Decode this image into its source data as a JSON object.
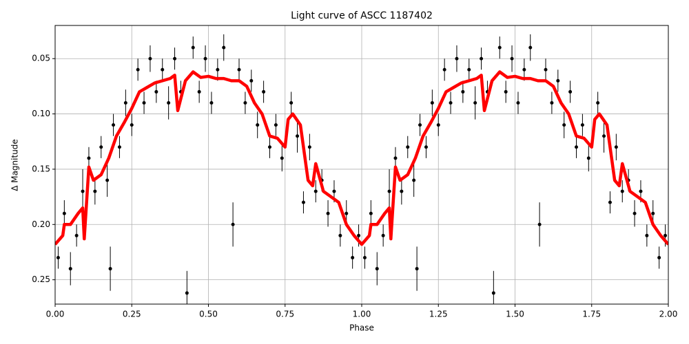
{
  "chart_data": {
    "type": "scatter",
    "title": "Light curve of ASCC 1187402",
    "x_label": "Phase",
    "y_label": "Δ Magnitude",
    "xlim": [
      0,
      2
    ],
    "ylim": [
      0.272,
      0.02
    ],
    "grid": true,
    "xticks": [
      {
        "value": 0,
        "label": "0.00"
      },
      {
        "value": 0.25,
        "label": "0.25"
      },
      {
        "value": 0.5,
        "label": "0.50"
      },
      {
        "value": 0.75,
        "label": "0.75"
      },
      {
        "value": 1,
        "label": "1.00"
      },
      {
        "value": 1.25,
        "label": "1.25"
      },
      {
        "value": 1.5,
        "label": "1.50"
      },
      {
        "value": 1.75,
        "label": "1.75"
      },
      {
        "value": 2,
        "label": "2.00"
      }
    ],
    "yticks": [
      {
        "value": 0.05,
        "label": "0.05"
      },
      {
        "value": 0.1,
        "label": "0.10"
      },
      {
        "value": 0.15,
        "label": "0.15"
      },
      {
        "value": 0.2,
        "label": "0.20"
      },
      {
        "value": 0.25,
        "label": "0.25"
      }
    ],
    "series": [
      {
        "type": "errorbar",
        "color": "#000000",
        "x": [
          0.01,
          0.03,
          0.05,
          0.07,
          0.09,
          0.11,
          0.13,
          0.15,
          0.17,
          0.18,
          0.19,
          0.21,
          0.23,
          0.25,
          0.27,
          0.29,
          0.31,
          0.33,
          0.35,
          0.37,
          0.39,
          0.41,
          0.43,
          0.45,
          0.47,
          0.49,
          0.51,
          0.53,
          0.55,
          0.58,
          0.6,
          0.62,
          0.64,
          0.66,
          0.68,
          0.7,
          0.72,
          0.74,
          0.77,
          0.79,
          0.81,
          0.83,
          0.85,
          0.87,
          0.89,
          0.91,
          0.93,
          0.95,
          0.97,
          0.99,
          1.01,
          1.03,
          1.05,
          1.07,
          1.09,
          1.11,
          1.13,
          1.15,
          1.17,
          1.18,
          1.19,
          1.21,
          1.23,
          1.25,
          1.27,
          1.29,
          1.31,
          1.33,
          1.35,
          1.37,
          1.39,
          1.41,
          1.43,
          1.45,
          1.47,
          1.49,
          1.51,
          1.53,
          1.55,
          1.58,
          1.6,
          1.62,
          1.64,
          1.66,
          1.68,
          1.7,
          1.72,
          1.74,
          1.77,
          1.79,
          1.81,
          1.83,
          1.85,
          1.87,
          1.89,
          1.91,
          1.93,
          1.95,
          1.97,
          1.99
        ],
        "values": [
          0.23,
          0.19,
          0.24,
          0.21,
          0.17,
          0.14,
          0.17,
          0.13,
          0.16,
          0.24,
          0.11,
          0.13,
          0.09,
          0.11,
          0.06,
          0.09,
          0.05,
          0.08,
          0.06,
          0.09,
          0.05,
          0.08,
          0.262,
          0.04,
          0.08,
          0.05,
          0.09,
          0.06,
          0.04,
          0.2,
          0.06,
          0.09,
          0.07,
          0.11,
          0.08,
          0.13,
          0.11,
          0.14,
          0.09,
          0.12,
          0.18,
          0.13,
          0.17,
          0.16,
          0.19,
          0.17,
          0.21,
          0.19,
          0.23,
          0.21,
          0.23,
          0.19,
          0.24,
          0.21,
          0.17,
          0.14,
          0.17,
          0.13,
          0.16,
          0.24,
          0.11,
          0.13,
          0.09,
          0.11,
          0.06,
          0.09,
          0.05,
          0.08,
          0.06,
          0.09,
          0.05,
          0.08,
          0.262,
          0.04,
          0.08,
          0.05,
          0.09,
          0.06,
          0.04,
          0.2,
          0.06,
          0.09,
          0.07,
          0.11,
          0.08,
          0.13,
          0.11,
          0.14,
          0.09,
          0.12,
          0.18,
          0.13,
          0.17,
          0.16,
          0.19,
          0.17,
          0.21,
          0.19,
          0.23,
          0.21
        ],
        "errors": [
          0.01,
          0.012,
          0.015,
          0.01,
          0.02,
          0.01,
          0.012,
          0.01,
          0.015,
          0.02,
          0.01,
          0.01,
          0.012,
          0.01,
          0.01,
          0.01,
          0.012,
          0.01,
          0.01,
          0.015,
          0.01,
          0.01,
          0.02,
          0.01,
          0.01,
          0.012,
          0.01,
          0.01,
          0.012,
          0.02,
          0.01,
          0.01,
          0.01,
          0.012,
          0.01,
          0.01,
          0.01,
          0.012,
          0.01,
          0.015,
          0.01,
          0.012,
          0.01,
          0.01,
          0.012,
          0.01,
          0.01,
          0.012,
          0.01,
          0.01,
          0.01,
          0.012,
          0.015,
          0.01,
          0.02,
          0.01,
          0.012,
          0.01,
          0.015,
          0.02,
          0.01,
          0.01,
          0.012,
          0.01,
          0.01,
          0.01,
          0.012,
          0.01,
          0.01,
          0.015,
          0.01,
          0.01,
          0.02,
          0.01,
          0.01,
          0.012,
          0.01,
          0.01,
          0.012,
          0.02,
          0.01,
          0.01,
          0.01,
          0.012,
          0.01,
          0.01,
          0.01,
          0.012,
          0.01,
          0.015,
          0.01,
          0.012,
          0.01,
          0.01,
          0.012,
          0.01,
          0.01,
          0.012,
          0.01,
          0.01
        ]
      },
      {
        "type": "line",
        "color": "#ff0000",
        "x": [
          0,
          0.025,
          0.03,
          0.05,
          0.075,
          0.09,
          0.095,
          0.11,
          0.125,
          0.15,
          0.175,
          0.2,
          0.225,
          0.25,
          0.275,
          0.3,
          0.325,
          0.35,
          0.375,
          0.39,
          0.4,
          0.425,
          0.45,
          0.475,
          0.5,
          0.525,
          0.55,
          0.575,
          0.6,
          0.625,
          0.65,
          0.675,
          0.7,
          0.725,
          0.75,
          0.76,
          0.775,
          0.8,
          0.825,
          0.84,
          0.85,
          0.875,
          0.9,
          0.925,
          0.95,
          0.975,
          1,
          1.025,
          1.03,
          1.05,
          1.075,
          1.09,
          1.095,
          1.11,
          1.125,
          1.15,
          1.175,
          1.2,
          1.225,
          1.25,
          1.275,
          1.3,
          1.325,
          1.35,
          1.375,
          1.39,
          1.4,
          1.425,
          1.45,
          1.475,
          1.5,
          1.525,
          1.55,
          1.575,
          1.6,
          1.625,
          1.65,
          1.675,
          1.7,
          1.725,
          1.75,
          1.76,
          1.775,
          1.8,
          1.825,
          1.84,
          1.85,
          1.875,
          1.9,
          1.925,
          1.95,
          1.975,
          2
        ],
        "values": [
          0.218,
          0.21,
          0.2,
          0.2,
          0.19,
          0.185,
          0.213,
          0.148,
          0.16,
          0.155,
          0.14,
          0.12,
          0.108,
          0.095,
          0.08,
          0.076,
          0.072,
          0.07,
          0.068,
          0.065,
          0.097,
          0.07,
          0.062,
          0.067,
          0.066,
          0.068,
          0.068,
          0.07,
          0.07,
          0.075,
          0.09,
          0.1,
          0.12,
          0.122,
          0.13,
          0.105,
          0.1,
          0.11,
          0.16,
          0.165,
          0.145,
          0.17,
          0.175,
          0.18,
          0.2,
          0.21,
          0.218,
          0.21,
          0.2,
          0.2,
          0.19,
          0.185,
          0.213,
          0.148,
          0.16,
          0.155,
          0.14,
          0.12,
          0.108,
          0.095,
          0.08,
          0.076,
          0.072,
          0.07,
          0.068,
          0.065,
          0.097,
          0.07,
          0.062,
          0.067,
          0.066,
          0.068,
          0.068,
          0.07,
          0.07,
          0.075,
          0.09,
          0.1,
          0.12,
          0.122,
          0.13,
          0.105,
          0.1,
          0.11,
          0.16,
          0.165,
          0.145,
          0.17,
          0.175,
          0.18,
          0.2,
          0.21,
          0.218
        ]
      }
    ]
  }
}
